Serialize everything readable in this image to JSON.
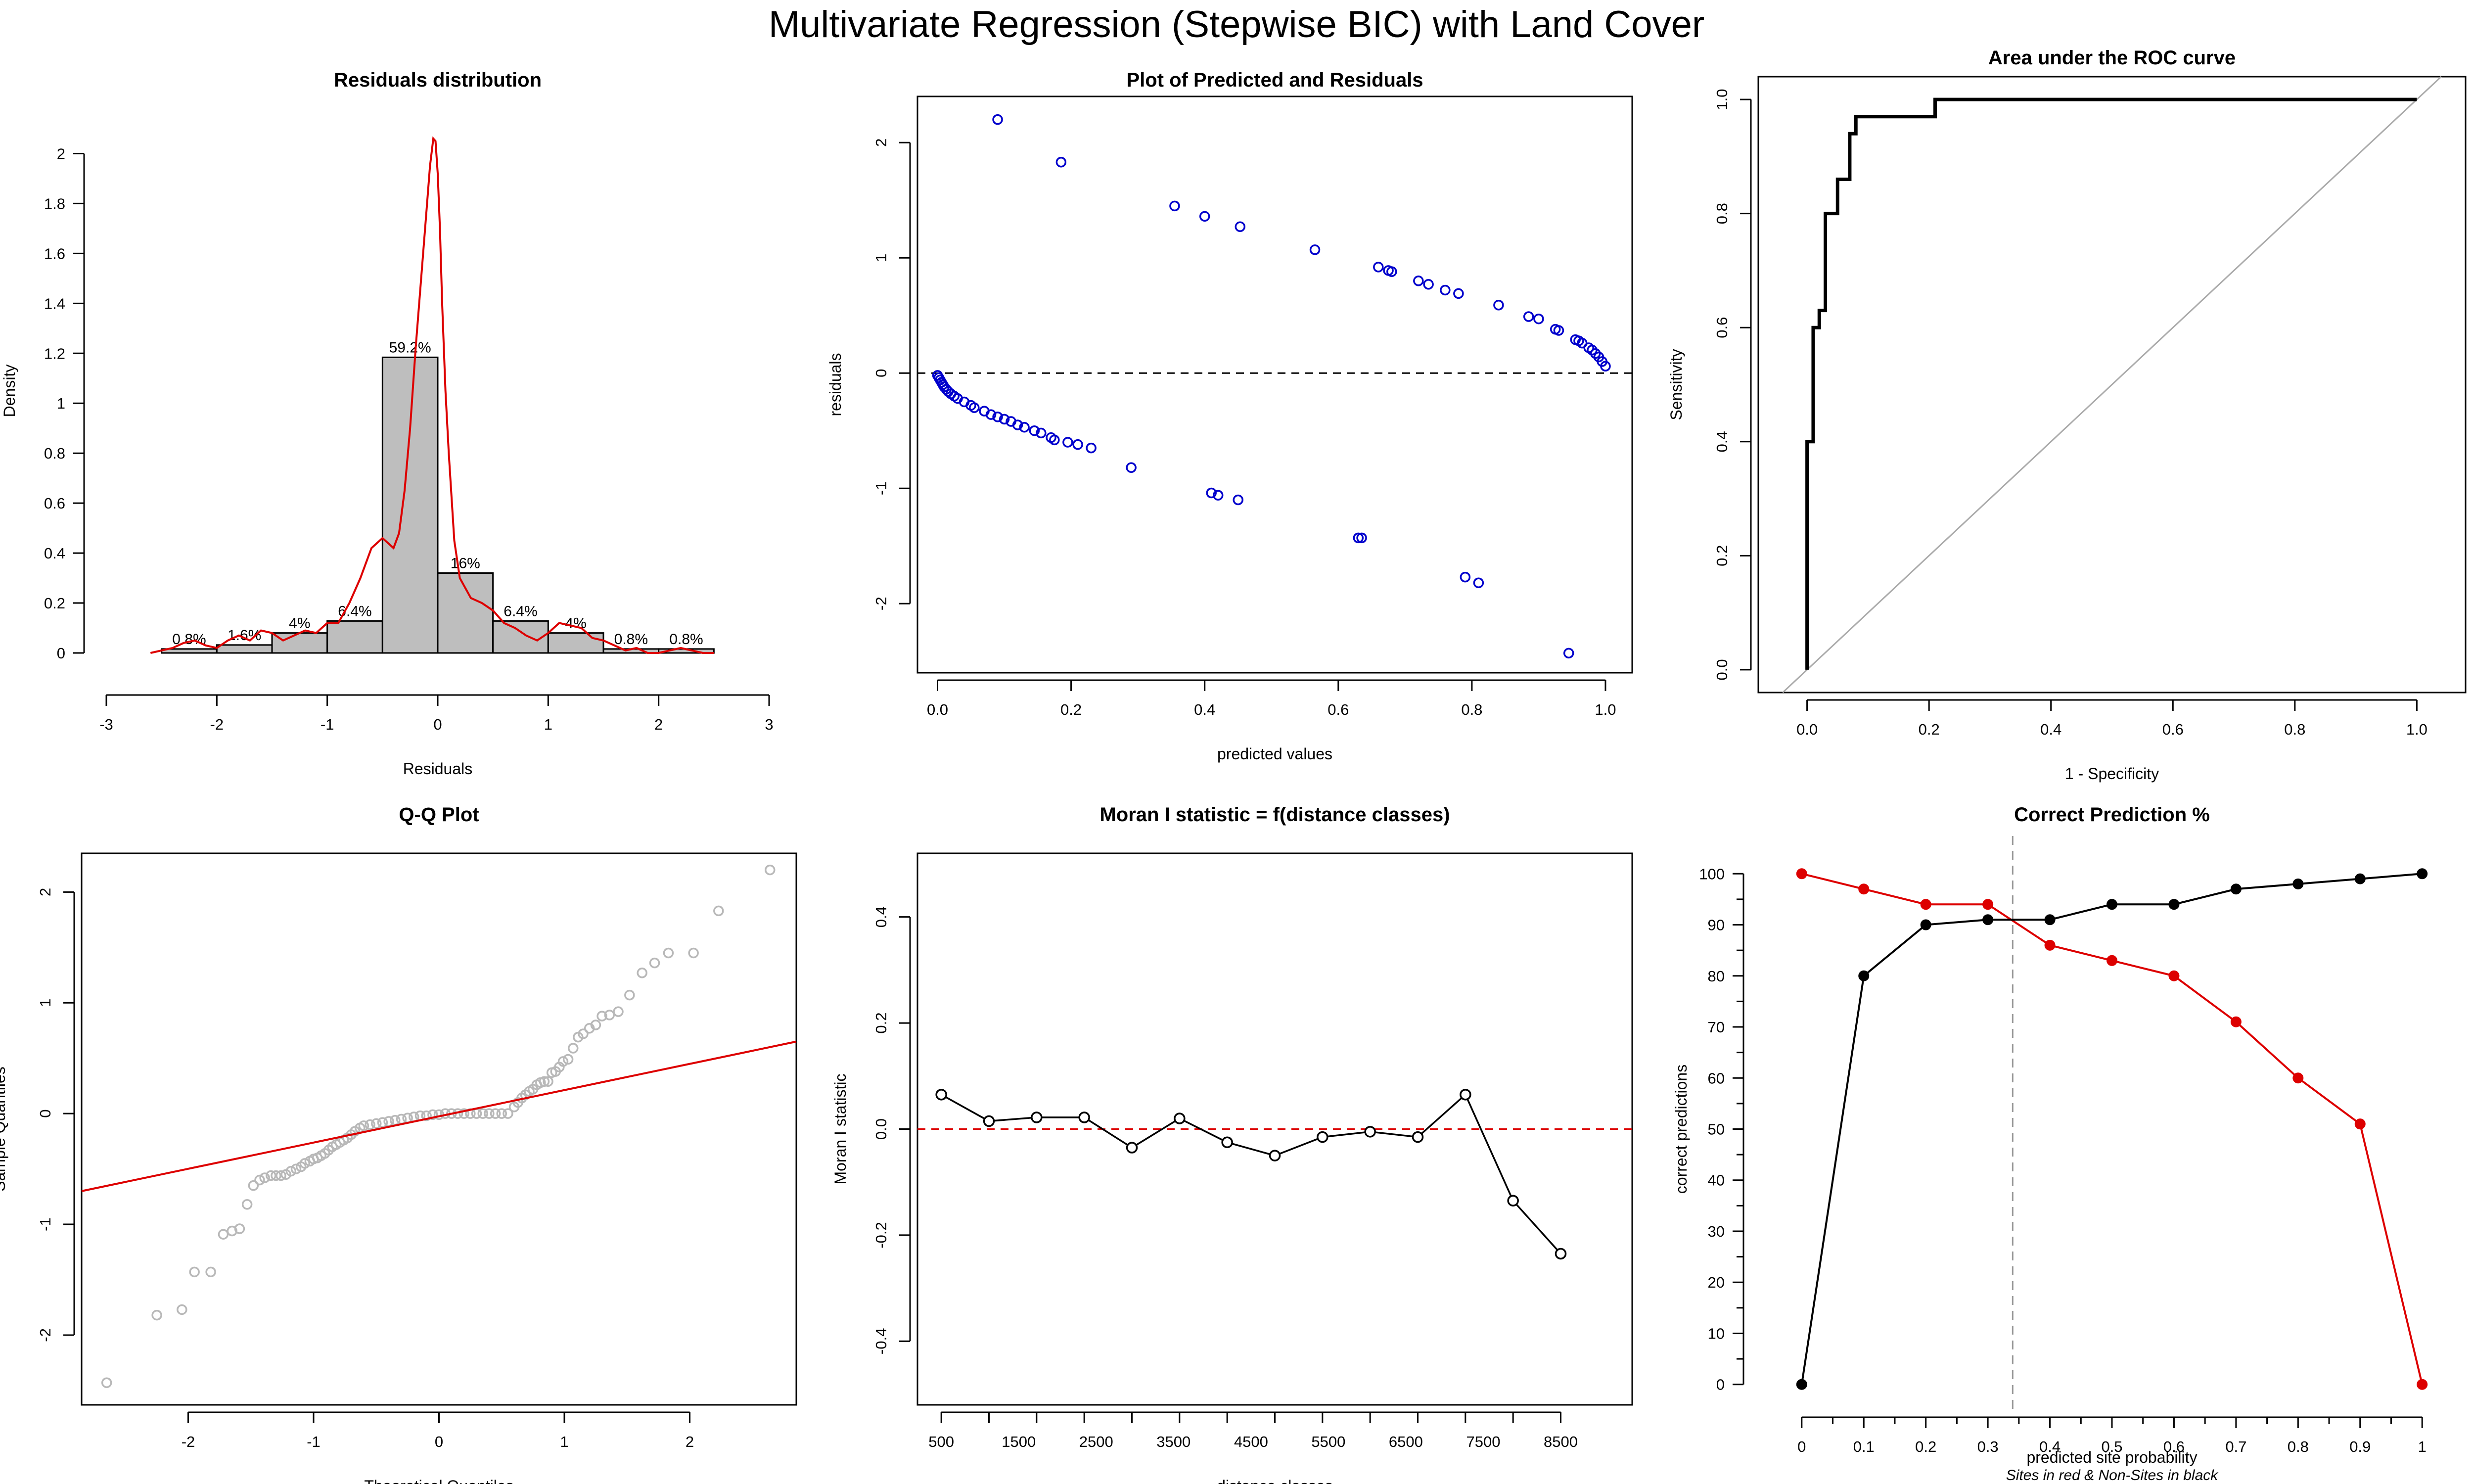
{
  "main_title": "Multivariate Regression (Stepwise BIC) with Land Cover",
  "colors": {
    "red": "#dd0000",
    "blue": "#0000cc",
    "gray_fill": "#bebebe",
    "qq_points": "#b8b8b8",
    "diag": "#aaaaaa"
  },
  "chart_data": [
    {
      "id": "hist",
      "type": "bar",
      "title": "Residuals distribution",
      "xlabel": "Residuals",
      "ylabel": "Density",
      "xlim": [
        -3,
        3
      ],
      "ylim": [
        0,
        2.1
      ],
      "xticks": [
        "-3",
        "-2",
        "-1",
        "0",
        "1",
        "2",
        "3"
      ],
      "yticks": [
        "0",
        "0.2",
        "0.4",
        "0.6",
        "0.8",
        "1",
        "1.2",
        "1.4",
        "1.6",
        "1.8",
        "2"
      ],
      "bins": [
        {
          "x0": -2.5,
          "x1": -2.0,
          "density": 0.016,
          "label": "0.8%"
        },
        {
          "x0": -2.0,
          "x1": -1.5,
          "density": 0.032,
          "label": "1.6%"
        },
        {
          "x0": -1.5,
          "x1": -1.0,
          "density": 0.08,
          "label": "4%"
        },
        {
          "x0": -1.0,
          "x1": -0.5,
          "density": 0.128,
          "label": "6.4%"
        },
        {
          "x0": -0.5,
          "x1": 0.0,
          "density": 1.184,
          "label": "59.2%"
        },
        {
          "x0": 0.0,
          "x1": 0.5,
          "density": 0.32,
          "label": "16%"
        },
        {
          "x0": 0.5,
          "x1": 1.0,
          "density": 0.128,
          "label": "6.4%"
        },
        {
          "x0": 1.0,
          "x1": 1.5,
          "density": 0.08,
          "label": "4%"
        },
        {
          "x0": 1.5,
          "x1": 2.0,
          "density": 0.016,
          "label": "0.8%"
        },
        {
          "x0": 2.0,
          "x1": 2.5,
          "density": 0.016,
          "label": "0.8%"
        }
      ],
      "density_curve": {
        "x": [
          -2.6,
          -2.5,
          -2.4,
          -2.3,
          -2.2,
          -2.1,
          -2.0,
          -1.9,
          -1.8,
          -1.7,
          -1.6,
          -1.5,
          -1.4,
          -1.3,
          -1.2,
          -1.1,
          -1.0,
          -0.9,
          -0.8,
          -0.7,
          -0.6,
          -0.55,
          -0.5,
          -0.45,
          -0.4,
          -0.35,
          -0.3,
          -0.25,
          -0.2,
          -0.15,
          -0.1,
          -0.07,
          -0.04,
          -0.02,
          0.0,
          0.02,
          0.04,
          0.07,
          0.1,
          0.15,
          0.2,
          0.3,
          0.4,
          0.5,
          0.6,
          0.7,
          0.8,
          0.9,
          1.0,
          1.1,
          1.2,
          1.3,
          1.4,
          1.5,
          1.6,
          1.7,
          1.8,
          1.9,
          2.0,
          2.1,
          2.2,
          2.3,
          2.4,
          2.5
        ],
        "y": [
          0.0,
          0.01,
          0.02,
          0.04,
          0.05,
          0.03,
          0.02,
          0.05,
          0.07,
          0.05,
          0.09,
          0.08,
          0.05,
          0.07,
          0.09,
          0.08,
          0.12,
          0.12,
          0.2,
          0.3,
          0.42,
          0.44,
          0.46,
          0.44,
          0.42,
          0.48,
          0.65,
          0.9,
          1.22,
          1.5,
          1.78,
          1.95,
          2.06,
          2.05,
          1.92,
          1.7,
          1.4,
          1.05,
          0.8,
          0.45,
          0.3,
          0.22,
          0.2,
          0.17,
          0.12,
          0.1,
          0.07,
          0.05,
          0.08,
          0.12,
          0.11,
          0.1,
          0.06,
          0.05,
          0.03,
          0.01,
          0.02,
          0.0,
          0.0,
          0.01,
          0.02,
          0.01,
          0.0,
          0.0
        ]
      }
    },
    {
      "id": "resid",
      "type": "scatter",
      "title": "Plot of Predicted and Residuals",
      "xlabel": "predicted values",
      "ylabel": "residuals",
      "xlim": [
        -0.03,
        1.04
      ],
      "ylim": [
        -2.6,
        2.4
      ],
      "xticks": [
        "0.0",
        "0.2",
        "0.4",
        "0.6",
        "0.8",
        "1.0"
      ],
      "yticks": [
        "-2",
        "-1",
        "0",
        "1",
        "2"
      ],
      "hline": 0,
      "points": [
        [
          0.09,
          2.2
        ],
        [
          0.185,
          1.83
        ],
        [
          0.355,
          1.45
        ],
        [
          0.4,
          1.36
        ],
        [
          0.453,
          1.27
        ],
        [
          0.565,
          1.07
        ],
        [
          0.66,
          0.92
        ],
        [
          0.675,
          0.89
        ],
        [
          0.68,
          0.88
        ],
        [
          0.72,
          0.8
        ],
        [
          0.735,
          0.77
        ],
        [
          0.76,
          0.72
        ],
        [
          0.78,
          0.69
        ],
        [
          0.84,
          0.59
        ],
        [
          0.885,
          0.49
        ],
        [
          0.9,
          0.47
        ],
        [
          0.925,
          0.38
        ],
        [
          0.93,
          0.37
        ],
        [
          0.955,
          0.29
        ],
        [
          0.96,
          0.28
        ],
        [
          0.965,
          0.26
        ],
        [
          0.975,
          0.22
        ],
        [
          0.98,
          0.2
        ],
        [
          0.985,
          0.17
        ],
        [
          0.99,
          0.14
        ],
        [
          0.995,
          0.1
        ],
        [
          1.0,
          0.06
        ],
        [
          0.0,
          -0.02
        ],
        [
          0.002,
          -0.04
        ],
        [
          0.004,
          -0.06
        ],
        [
          0.006,
          -0.08
        ],
        [
          0.008,
          -0.1
        ],
        [
          0.01,
          -0.12
        ],
        [
          0.013,
          -0.14
        ],
        [
          0.016,
          -0.16
        ],
        [
          0.02,
          -0.18
        ],
        [
          0.025,
          -0.2
        ],
        [
          0.03,
          -0.22
        ],
        [
          0.04,
          -0.25
        ],
        [
          0.05,
          -0.28
        ],
        [
          0.055,
          -0.3
        ],
        [
          0.07,
          -0.33
        ],
        [
          0.08,
          -0.36
        ],
        [
          0.09,
          -0.38
        ],
        [
          0.1,
          -0.4
        ],
        [
          0.11,
          -0.42
        ],
        [
          0.12,
          -0.45
        ],
        [
          0.13,
          -0.47
        ],
        [
          0.145,
          -0.5
        ],
        [
          0.155,
          -0.52
        ],
        [
          0.17,
          -0.56
        ],
        [
          0.175,
          -0.58
        ],
        [
          0.195,
          -0.6
        ],
        [
          0.21,
          -0.62
        ],
        [
          0.23,
          -0.65
        ],
        [
          0.29,
          -0.82
        ],
        [
          0.41,
          -1.04
        ],
        [
          0.42,
          -1.06
        ],
        [
          0.45,
          -1.1
        ],
        [
          0.63,
          -1.43
        ],
        [
          0.635,
          -1.43
        ],
        [
          0.79,
          -1.77
        ],
        [
          0.81,
          -1.82
        ],
        [
          0.945,
          -2.43
        ]
      ]
    },
    {
      "id": "roc",
      "type": "line",
      "title": "Area under the ROC curve",
      "xlabel": "1 - Specificity",
      "ylabel": "Sensitivity",
      "xlim": [
        -0.08,
        1.08
      ],
      "ylim": [
        -0.04,
        1.04
      ],
      "xticks": [
        "0.0",
        "0.2",
        "0.4",
        "0.6",
        "0.8",
        "1.0"
      ],
      "yticks": [
        "0.0",
        "0.2",
        "0.4",
        "0.6",
        "0.8",
        "1.0"
      ],
      "diagonal": [
        [
          -0.04,
          -0.04
        ],
        [
          1.04,
          1.04
        ]
      ],
      "curve": {
        "x": [
          0.0,
          0.0,
          0.01,
          0.01,
          0.02,
          0.02,
          0.03,
          0.03,
          0.05,
          0.05,
          0.07,
          0.07,
          0.08,
          0.08,
          0.1,
          0.1,
          0.21,
          0.21,
          1.0
        ],
        "y": [
          0.0,
          0.4,
          0.4,
          0.6,
          0.6,
          0.63,
          0.63,
          0.8,
          0.8,
          0.86,
          0.86,
          0.94,
          0.94,
          0.97,
          0.97,
          0.97,
          0.97,
          1.0,
          1.0
        ]
      }
    },
    {
      "id": "qq",
      "type": "scatter",
      "title": "Q-Q Plot",
      "xlabel": "Theoretical Quantiles",
      "ylabel": "Sample Quantiles",
      "xlim": [
        -2.85,
        2.85
      ],
      "ylim": [
        -2.63,
        2.35
      ],
      "xticks": [
        "-2",
        "-1",
        "0",
        "1",
        "2"
      ],
      "yticks": [
        "-2",
        "-1",
        "0",
        "1",
        "2"
      ],
      "line": [
        [
          -2.85,
          -0.7
        ],
        [
          2.85,
          0.65
        ]
      ],
      "points": [
        [
          -2.65,
          -2.43
        ],
        [
          -2.25,
          -1.82
        ],
        [
          -2.05,
          -1.77
        ],
        [
          -1.95,
          -1.43
        ],
        [
          -1.82,
          -1.43
        ],
        [
          -1.72,
          -1.09
        ],
        [
          -1.65,
          -1.06
        ],
        [
          -1.59,
          -1.04
        ],
        [
          -1.53,
          -0.82
        ],
        [
          -1.48,
          -0.65
        ],
        [
          -1.43,
          -0.6
        ],
        [
          -1.39,
          -0.58
        ],
        [
          -1.34,
          -0.56
        ],
        [
          -1.3,
          -0.56
        ],
        [
          -1.26,
          -0.56
        ],
        [
          -1.22,
          -0.55
        ],
        [
          -1.18,
          -0.52
        ],
        [
          -1.14,
          -0.5
        ],
        [
          -1.1,
          -0.48
        ],
        [
          -1.07,
          -0.45
        ],
        [
          -1.03,
          -0.43
        ],
        [
          -1.0,
          -0.41
        ],
        [
          -0.97,
          -0.4
        ],
        [
          -0.94,
          -0.38
        ],
        [
          -0.91,
          -0.36
        ],
        [
          -0.88,
          -0.33
        ],
        [
          -0.85,
          -0.3
        ],
        [
          -0.82,
          -0.28
        ],
        [
          -0.79,
          -0.26
        ],
        [
          -0.76,
          -0.24
        ],
        [
          -0.73,
          -0.22
        ],
        [
          -0.7,
          -0.19
        ],
        [
          -0.67,
          -0.16
        ],
        [
          -0.63,
          -0.13
        ],
        [
          -0.6,
          -0.11
        ],
        [
          -0.55,
          -0.1
        ],
        [
          -0.5,
          -0.09
        ],
        [
          -0.45,
          -0.08
        ],
        [
          -0.4,
          -0.07
        ],
        [
          -0.35,
          -0.06
        ],
        [
          -0.3,
          -0.05
        ],
        [
          -0.25,
          -0.04
        ],
        [
          -0.2,
          -0.03
        ],
        [
          -0.15,
          -0.02
        ],
        [
          -0.1,
          -0.02
        ],
        [
          -0.05,
          -0.01
        ],
        [
          0.0,
          -0.01
        ],
        [
          0.05,
          0.0
        ],
        [
          0.1,
          0.0
        ],
        [
          0.15,
          0.0
        ],
        [
          0.2,
          0.0
        ],
        [
          0.25,
          0.0
        ],
        [
          0.3,
          0.0
        ],
        [
          0.35,
          0.0
        ],
        [
          0.4,
          0.0
        ],
        [
          0.45,
          0.0
        ],
        [
          0.5,
          0.0
        ],
        [
          0.55,
          0.0
        ],
        [
          0.6,
          0.06
        ],
        [
          0.63,
          0.1
        ],
        [
          0.66,
          0.14
        ],
        [
          0.69,
          0.17
        ],
        [
          0.72,
          0.2
        ],
        [
          0.75,
          0.22
        ],
        [
          0.78,
          0.26
        ],
        [
          0.81,
          0.28
        ],
        [
          0.84,
          0.29
        ],
        [
          0.87,
          0.29
        ],
        [
          0.9,
          0.37
        ],
        [
          0.93,
          0.38
        ],
        [
          0.96,
          0.42
        ],
        [
          0.99,
          0.47
        ],
        [
          1.03,
          0.49
        ],
        [
          1.07,
          0.59
        ],
        [
          1.11,
          0.69
        ],
        [
          1.15,
          0.72
        ],
        [
          1.2,
          0.77
        ],
        [
          1.25,
          0.8
        ],
        [
          1.3,
          0.88
        ],
        [
          1.36,
          0.89
        ],
        [
          1.43,
          0.92
        ],
        [
          1.52,
          1.07
        ],
        [
          1.62,
          1.27
        ],
        [
          1.72,
          1.36
        ],
        [
          1.83,
          1.45
        ],
        [
          2.03,
          1.45
        ],
        [
          2.23,
          1.83
        ],
        [
          2.64,
          2.2
        ]
      ]
    },
    {
      "id": "moran",
      "type": "line",
      "title": "Moran I statistic = f(distance classes)",
      "xlabel": "distance classes",
      "ylabel": "Moran I statistic",
      "xlim": [
        -0.5,
        14.5
      ],
      "ylim": [
        -0.52,
        0.52
      ],
      "xticks": [
        "500",
        "1500",
        "2500",
        "3500",
        "4500",
        "5500",
        "6500",
        "7500",
        "8500"
      ],
      "yticks": [
        "-0.4",
        "-0.2",
        "0.0",
        "0.2",
        "0.4"
      ],
      "hline": 0,
      "series": [
        {
          "values": [
            0.065,
            0.015,
            0.022,
            0.022,
            -0.035,
            0.02,
            -0.025,
            -0.05,
            -0.015,
            -0.005,
            -0.015,
            0.065,
            -0.135,
            -0.235
          ]
        }
      ]
    },
    {
      "id": "correct",
      "type": "line",
      "title": "Correct Prediction %",
      "xlabel": "predicted site probability",
      "subtitle": "Sites in red & Non-Sites in black",
      "ylabel": "correct predictions",
      "xlim": [
        -0.07,
        1.07
      ],
      "ylim": [
        -4,
        104
      ],
      "xticks": [
        "0",
        "0.1",
        "0.2",
        "0.3",
        "0.4",
        "0.5",
        "0.6",
        "0.7",
        "0.8",
        "0.9",
        "1"
      ],
      "yticks": [
        "0",
        "10",
        "20",
        "30",
        "40",
        "50",
        "60",
        "70",
        "80",
        "90",
        "100"
      ],
      "vline": 0.34,
      "x": [
        0,
        0.1,
        0.2,
        0.3,
        0.4,
        0.5,
        0.6,
        0.7,
        0.8,
        0.9,
        1.0
      ],
      "series": [
        {
          "color": "#dd0000",
          "values": [
            100,
            97,
            94,
            94,
            86,
            83,
            80,
            71,
            60,
            51,
            0
          ]
        },
        {
          "color": "#000000",
          "values": [
            0,
            80,
            90,
            91,
            91,
            94,
            94,
            97,
            98,
            99,
            100
          ]
        }
      ]
    }
  ]
}
